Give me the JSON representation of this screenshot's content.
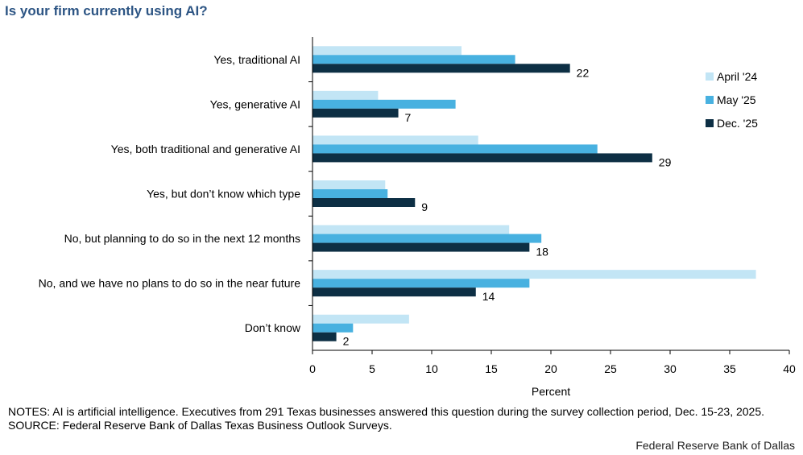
{
  "title": "Is your firm currently using AI?",
  "notes": {
    "line1": "NOTES: AI is artificial intelligence. Executives from 291 Texas businesses answered this question during the survey collection period, Dec. 15-23, 2025.",
    "line2": "SOURCE: Federal Reserve Bank of Dallas Texas Business Outlook Surveys."
  },
  "credit": "Federal Reserve Bank of Dallas",
  "chart_data": {
    "type": "bar",
    "orientation": "horizontal",
    "title": "Is your firm currently using AI?",
    "xlabel": "Percent",
    "ylabel": "",
    "xlim": [
      0,
      40
    ],
    "xticks": [
      0,
      5,
      10,
      15,
      20,
      25,
      30,
      35,
      40
    ],
    "grid": false,
    "legend_position": "right",
    "categories": [
      "Yes, traditional AI",
      "Yes, generative AI",
      "Yes, both traditional and generative AI",
      "Yes, but don’t know which type",
      "No, but planning to do so in the next 12 months",
      "No, and we have no plans to do so in the near future",
      "Don’t know"
    ],
    "series": [
      {
        "name": "April '24",
        "color": "#c2e5f5",
        "values": [
          12.5,
          5.5,
          13.9,
          6.1,
          16.5,
          37.2,
          8.1
        ]
      },
      {
        "name": "May '25",
        "color": "#48b1e0",
        "values": [
          17.0,
          12.0,
          23.9,
          6.3,
          19.2,
          18.2,
          3.4
        ]
      },
      {
        "name": "Dec. '25",
        "color": "#0d2f44",
        "values": [
          21.6,
          7.2,
          28.5,
          8.6,
          18.2,
          13.7,
          2.0
        ],
        "data_labels": [
          "22",
          "7",
          "29",
          "9",
          "18",
          "14",
          "2"
        ]
      }
    ]
  }
}
